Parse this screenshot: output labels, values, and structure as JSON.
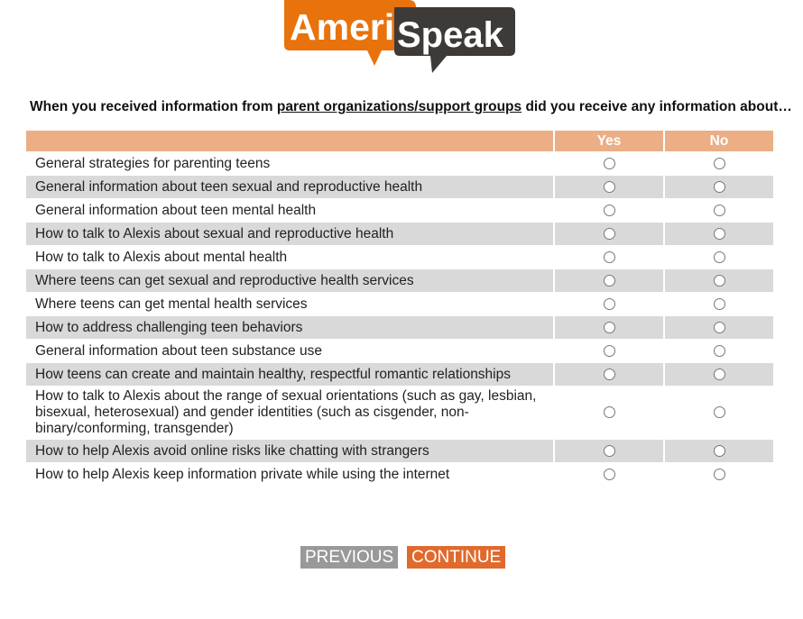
{
  "logo": {
    "part1": "Ameri",
    "part2": "Speak",
    "colors": {
      "orange": "#e8720c",
      "dark": "#3d3a38"
    }
  },
  "question": {
    "prefix": "When you received information from ",
    "link": "parent organizations/support groups",
    "suffix": " did you receive any information about…"
  },
  "table": {
    "columns": [
      "Yes",
      "No"
    ],
    "header_color": "#ebae85",
    "rows": [
      "General strategies for parenting teens",
      "General information about teen sexual and reproductive health",
      "General information about teen mental health",
      "How to talk to Alexis about sexual and reproductive health",
      "How to talk to Alexis about mental health",
      "Where teens can get sexual and reproductive health services",
      "Where teens can get mental health services",
      "How to address challenging teen behaviors",
      "General information about teen substance use",
      "How teens can create and maintain healthy, respectful romantic relationships",
      "How to talk to Alexis about the range of sexual orientations (such as gay, lesbian, bisexual, heterosexual) and gender identities (such as cisgender, non-binary/conforming, transgender)",
      "How to help Alexis avoid online risks like chatting with strangers",
      "How to help Alexis keep information private while using the internet"
    ]
  },
  "buttons": {
    "previous": "PREVIOUS",
    "continue": "CONTINUE"
  }
}
